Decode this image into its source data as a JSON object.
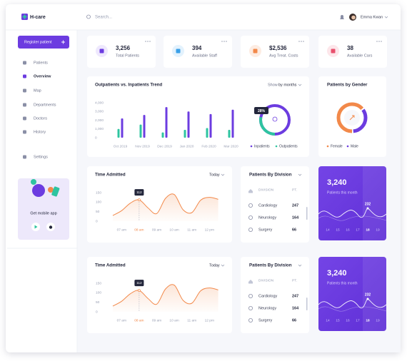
{
  "brand": "H-care",
  "search": "Search...",
  "user": "Emma Kwan",
  "sidebar": {
    "button": "Register patient",
    "nav": [
      "Patients",
      "Overview",
      "Map",
      "Departments",
      "Doctors",
      "History",
      "Settings"
    ],
    "active": "Overview",
    "promo": "Get mobile app"
  },
  "stats": [
    {
      "value": "3,256",
      "label": "Total Patients",
      "color": "#6c3ce0",
      "bg": "#eee8fd"
    },
    {
      "value": "394",
      "label": "Available Staff",
      "color": "#3aa0e8",
      "bg": "#e3f2fd"
    },
    {
      "value": "$2,536",
      "label": "Avg Treat. Costs",
      "color": "#f2894a",
      "bg": "#fdece2"
    },
    {
      "value": "38",
      "label": "Available Cars",
      "color": "#e8506d",
      "bg": "#fde6ea"
    }
  ],
  "trend": {
    "type": "bar",
    "title": "Outpatients vs. Inpatients Trend",
    "filter_label": "Show",
    "filter": "by months",
    "categories": [
      "Oct 2019",
      "Nov 2019",
      "Dec 2019",
      "Jan 2020",
      "Feb 2020",
      "Mar 2020"
    ],
    "series": [
      {
        "name": "Inpatients",
        "color": "#6c3ce0",
        "values": [
          2200,
          2600,
          3500,
          3000,
          2700,
          3200
        ]
      },
      {
        "name": "Outpatients",
        "color": "#2ec4a0",
        "values": [
          1000,
          1500,
          600,
          900,
          1100,
          900
        ]
      }
    ],
    "ylim": [
      0,
      4000
    ],
    "yticks": [
      0,
      {
        "value": 1000,
        "label": "1,000"
      },
      {
        "value": 2000,
        "label": "2,000"
      },
      {
        "value": 3000,
        "label": "3,000"
      },
      {
        "value": 4000,
        "label": "4,000"
      }
    ],
    "share": {
      "value": 28,
      "label": "28%"
    }
  },
  "gender": {
    "type": "donut",
    "title": "Patients by Gender",
    "series": [
      {
        "name": "Female",
        "color": "#f2894a",
        "value": 65
      },
      {
        "name": "Male",
        "color": "#6c3ce0",
        "value": 35
      }
    ]
  },
  "rows": [
    {
      "admitted": {
        "type": "line",
        "title": "Time Admitted",
        "filter": "Today",
        "color": "#f2894a",
        "categories": [
          null,
          "07 am",
          null,
          "08 am",
          null,
          "09 am",
          null,
          "10 am",
          null,
          "11 am",
          null,
          "12 pm",
          null
        ],
        "values": [
          30,
          55,
          95,
          112,
          70,
          40,
          120,
          140,
          60,
          45,
          110,
          125,
          115
        ],
        "ylim": [
          0,
          150
        ],
        "yticks": [
          0,
          50,
          100,
          150
        ],
        "tooltip": 112
      },
      "division": {
        "title": "Patients By Division",
        "headers": [
          "DIVISION",
          "PT."
        ],
        "rows": [
          [
            "Cardiology",
            247
          ],
          [
            "Neurology",
            164
          ],
          [
            "Surgery",
            66
          ]
        ]
      },
      "monthly": {
        "value": "3,240",
        "label": "Patients this month",
        "peak": 232,
        "days": [
          14,
          15,
          16,
          17,
          18,
          19
        ],
        "selected": 18
      }
    },
    {
      "admitted": {
        "type": "line",
        "title": "Time Admitted",
        "filter": "Today",
        "color": "#f2894a",
        "categories": [
          null,
          "07 am",
          null,
          "08 am",
          null,
          "09 am",
          null,
          "10 am",
          null,
          "11 am",
          null,
          "12 pm",
          null
        ],
        "values": [
          30,
          55,
          95,
          112,
          70,
          40,
          120,
          140,
          60,
          45,
          110,
          125,
          115
        ],
        "ylim": [
          0,
          150
        ],
        "yticks": [
          0,
          50,
          100,
          150
        ],
        "tooltip": 112
      },
      "division": {
        "title": "Patients By Division",
        "headers": [
          "DIVISION",
          "PT."
        ],
        "rows": [
          [
            "Cardiology",
            247
          ],
          [
            "Neurology",
            164
          ],
          [
            "Surgery",
            66
          ]
        ]
      },
      "monthly": {
        "value": "3,240",
        "label": "Patients this month",
        "peak": 232,
        "days": [
          14,
          15,
          16,
          17,
          18,
          19
        ],
        "selected": 18
      }
    }
  ]
}
